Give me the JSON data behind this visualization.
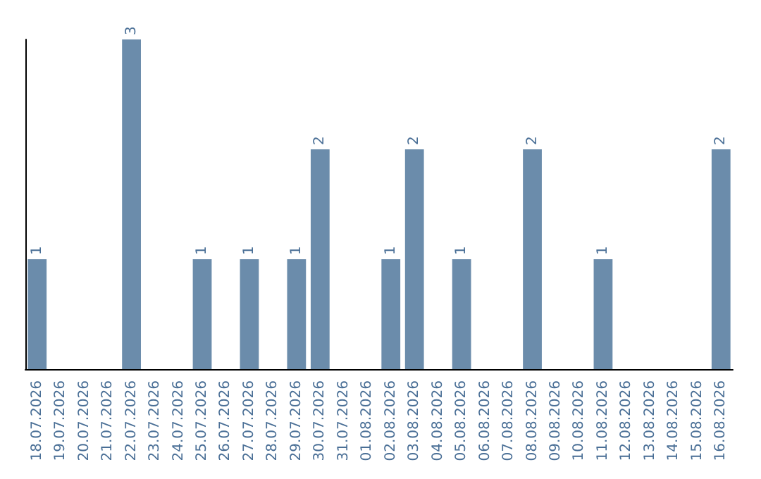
{
  "chart_data": {
    "type": "bar",
    "categories": [
      "18.07.2026",
      "19.07.2026",
      "20.07.2026",
      "21.07.2026",
      "22.07.2026",
      "23.07.2026",
      "24.07.2026",
      "25.07.2026",
      "26.07.2026",
      "27.07.2026",
      "28.07.2026",
      "29.07.2026",
      "30.07.2026",
      "31.07.2026",
      "01.08.2026",
      "02.08.2026",
      "03.08.2026",
      "04.08.2026",
      "05.08.2026",
      "06.08.2026",
      "07.08.2026",
      "08.08.2026",
      "09.08.2026",
      "10.08.2026",
      "11.08.2026",
      "12.08.2026",
      "13.08.2026",
      "14.08.2026",
      "15.08.2026",
      "16.08.2026"
    ],
    "values": [
      1,
      0,
      0,
      0,
      3,
      0,
      0,
      1,
      0,
      1,
      0,
      1,
      2,
      0,
      0,
      1,
      2,
      0,
      1,
      0,
      0,
      2,
      0,
      0,
      1,
      0,
      0,
      0,
      0,
      2
    ],
    "value_labels": [
      "1",
      null,
      null,
      null,
      "3",
      null,
      null,
      "1",
      null,
      "1",
      null,
      "1",
      "2",
      null,
      null,
      "1",
      "2",
      null,
      "1",
      null,
      null,
      "2",
      null,
      null,
      "1",
      null,
      null,
      null,
      null,
      "2"
    ],
    "color": "#6b8cab",
    "tick_labels": "x"
  }
}
